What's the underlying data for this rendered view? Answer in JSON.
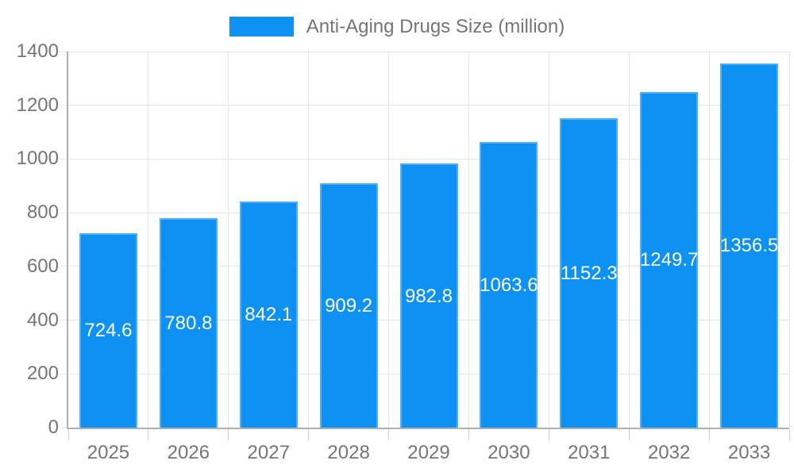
{
  "legend": {
    "label": "Anti-Aging Drugs Size (million)"
  },
  "colors": {
    "bar": "#0D92F4",
    "axis_text": "#757575",
    "grid": "#E6E6E6",
    "axis_line": "#B0B0B0",
    "tick": "#CCCCCC",
    "value_text": "#FFFFFF",
    "background": "#FFFFFF"
  },
  "chart_data": {
    "type": "bar",
    "title": "",
    "series_name": "Anti-Aging Drugs Size (million)",
    "categories": [
      "2025",
      "2026",
      "2027",
      "2028",
      "2029",
      "2030",
      "2031",
      "2032",
      "2033"
    ],
    "values": [
      724.6,
      780.8,
      842.1,
      909.2,
      982.8,
      1063.6,
      1152.3,
      1249.7,
      1356.5
    ],
    "value_labels": [
      "724.6",
      "780.8",
      "842.1",
      "909.2",
      "982.8",
      "1063.6",
      "1152.3",
      "1249.7",
      "1356.5"
    ],
    "xlabel": "",
    "ylabel": "",
    "ylim": [
      0,
      1400
    ],
    "y_ticks": [
      0,
      200,
      400,
      600,
      800,
      1000,
      1200,
      1400
    ],
    "grid": true,
    "legend_position": "top",
    "value_label_position": "inside-center"
  }
}
